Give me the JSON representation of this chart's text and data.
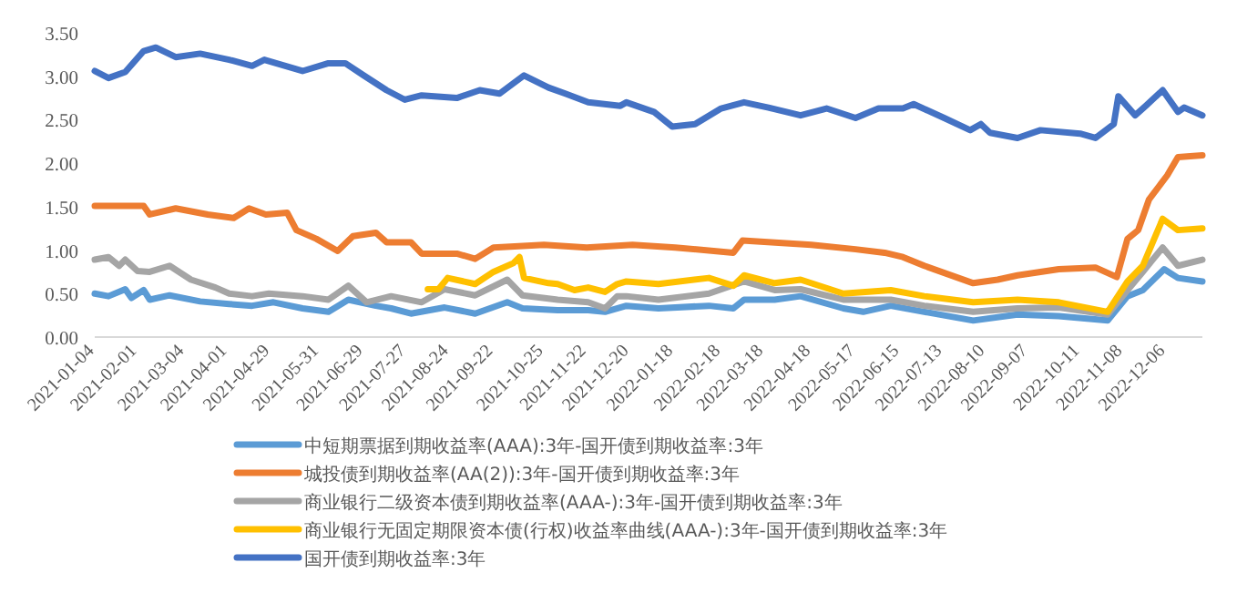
{
  "chart_data": {
    "type": "line",
    "xlim": [
      "2021-01-04",
      "2022-12-30"
    ],
    "ylim": [
      0,
      3.5
    ],
    "yticks": [
      {
        "value": 0,
        "label": "0.00"
      },
      {
        "value": 0.5,
        "label": "0.50"
      },
      {
        "value": 1,
        "label": "1.00"
      },
      {
        "value": 1.5,
        "label": "1.50"
      },
      {
        "value": 2,
        "label": "2.00"
      },
      {
        "value": 2.5,
        "label": "2.50"
      },
      {
        "value": 3,
        "label": "3.00"
      },
      {
        "value": 3.5,
        "label": "3.50"
      }
    ],
    "xticks": [
      {
        "value": "2021-01-04",
        "label": "2021-01-04"
      },
      {
        "value": "2021-02-01",
        "label": "2021-02-01"
      },
      {
        "value": "2021-03-04",
        "label": "2021-03-04"
      },
      {
        "value": "2021-04-01",
        "label": "2021-04-01"
      },
      {
        "value": "2021-04-29",
        "label": "2021-04-29"
      },
      {
        "value": "2021-05-31",
        "label": "2021-05-31"
      },
      {
        "value": "2021-06-29",
        "label": "2021-06-29"
      },
      {
        "value": "2021-07-27",
        "label": "2021-07-27"
      },
      {
        "value": "2021-08-24",
        "label": "2021-08-24"
      },
      {
        "value": "2021-09-22",
        "label": "2021-09-22"
      },
      {
        "value": "2021-10-25",
        "label": "2021-10-25"
      },
      {
        "value": "2021-11-22",
        "label": "2021-11-22"
      },
      {
        "value": "2021-12-20",
        "label": "2021-12-20"
      },
      {
        "value": "2022-01-18",
        "label": "2022-01-18"
      },
      {
        "value": "2022-02-18",
        "label": "2022-02-18"
      },
      {
        "value": "2022-03-18",
        "label": "2022-03-18"
      },
      {
        "value": "2022-04-18",
        "label": "2022-04-18"
      },
      {
        "value": "2022-05-17",
        "label": "2022-05-17"
      },
      {
        "value": "2022-06-15",
        "label": "2022-06-15"
      },
      {
        "value": "2022-07-13",
        "label": "2022-07-13"
      },
      {
        "value": "2022-08-10",
        "label": "2022-08-10"
      },
      {
        "value": "2022-09-07",
        "label": "2022-09-07"
      },
      {
        "value": "2022-10-11",
        "label": "2022-10-11"
      },
      {
        "value": "2022-11-08",
        "label": "2022-11-08"
      },
      {
        "value": "2022-12-06",
        "label": "2022-12-06"
      }
    ],
    "grid": false,
    "legend": "bottom",
    "marker": "none",
    "line_style": "solid",
    "series": [
      {
        "name": "中短期票据到期收益率(AAA):3年-国开债到期收益率:3年",
        "color": "#5b9bd5",
        "x": [
          "2021-01-04",
          "2021-01-13",
          "2021-01-24",
          "2021-01-28",
          "2021-02-05",
          "2021-02-09",
          "2021-02-22",
          "2021-03-14",
          "2021-04-02",
          "2021-04-17",
          "2021-05-01",
          "2021-05-20",
          "2021-06-06",
          "2021-06-19",
          "2021-07-07",
          "2021-07-17",
          "2021-07-30",
          "2021-08-21",
          "2021-09-10",
          "2021-10-01",
          "2021-10-11",
          "2021-11-03",
          "2021-11-23",
          "2021-12-04",
          "2021-12-18",
          "2022-01-08",
          "2022-02-10",
          "2022-02-26",
          "2022-03-05",
          "2022-03-25",
          "2022-04-11",
          "2022-05-09",
          "2022-05-22",
          "2022-06-09",
          "2022-07-01",
          "2022-08-02",
          "2022-08-31",
          "2022-09-27",
          "2022-10-29",
          "2022-11-11",
          "2022-11-21",
          "2022-12-05",
          "2022-12-14",
          "2022-12-30"
        ],
        "values": [
          0.5,
          0.47,
          0.55,
          0.45,
          0.54,
          0.43,
          0.48,
          0.41,
          0.38,
          0.36,
          0.4,
          0.33,
          0.29,
          0.43,
          0.36,
          0.33,
          0.27,
          0.34,
          0.27,
          0.4,
          0.33,
          0.31,
          0.31,
          0.29,
          0.36,
          0.33,
          0.36,
          0.33,
          0.43,
          0.43,
          0.47,
          0.33,
          0.29,
          0.36,
          0.29,
          0.19,
          0.26,
          0.24,
          0.19,
          0.47,
          0.54,
          0.78,
          0.68,
          0.64
        ]
      },
      {
        "name": "城投债到期收益率(AA(2)):3年-国开债到期收益率:3年",
        "color": "#ed7d31",
        "x": [
          "2021-01-04",
          "2021-02-05",
          "2021-02-09",
          "2021-02-26",
          "2021-03-19",
          "2021-04-05",
          "2021-04-15",
          "2021-04-26",
          "2021-05-10",
          "2021-05-16",
          "2021-05-29",
          "2021-06-12",
          "2021-06-22",
          "2021-07-07",
          "2021-07-14",
          "2021-07-30",
          "2021-08-06",
          "2021-08-29",
          "2021-09-10",
          "2021-09-22",
          "2021-10-25",
          "2021-11-22",
          "2021-12-22",
          "2022-01-19",
          "2022-02-26",
          "2022-03-04",
          "2022-04-18",
          "2022-05-17",
          "2022-06-05",
          "2022-06-17",
          "2022-07-01",
          "2022-08-02",
          "2022-08-18",
          "2022-08-31",
          "2022-09-27",
          "2022-10-21",
          "2022-11-04",
          "2022-11-11",
          "2022-11-18",
          "2022-11-25",
          "2022-12-07",
          "2022-12-14",
          "2022-12-30"
        ],
        "values": [
          1.51,
          1.51,
          1.41,
          1.48,
          1.41,
          1.37,
          1.48,
          1.41,
          1.43,
          1.23,
          1.13,
          0.99,
          1.16,
          1.2,
          1.09,
          1.09,
          0.96,
          0.96,
          0.9,
          1.03,
          1.06,
          1.03,
          1.06,
          1.03,
          0.97,
          1.11,
          1.06,
          1.01,
          0.97,
          0.92,
          0.82,
          0.62,
          0.66,
          0.71,
          0.78,
          0.8,
          0.69,
          1.13,
          1.23,
          1.58,
          1.86,
          2.07,
          2.09
        ]
      },
      {
        "name": "商业银行二级资本债到期收益率(AAA-):3年-国开债到期收益率:3年",
        "color": "#a5a5a5",
        "x": [
          "2021-01-04",
          "2021-01-13",
          "2021-01-20",
          "2021-01-24",
          "2021-02-01",
          "2021-02-09",
          "2021-02-22",
          "2021-03-08",
          "2021-03-24",
          "2021-04-02",
          "2021-04-17",
          "2021-04-28",
          "2021-05-20",
          "2021-06-06",
          "2021-06-19",
          "2021-07-01",
          "2021-07-17",
          "2021-08-06",
          "2021-08-21",
          "2021-09-10",
          "2021-10-01",
          "2021-10-11",
          "2021-11-03",
          "2021-11-23",
          "2021-12-04",
          "2021-12-12",
          "2021-12-18",
          "2022-01-08",
          "2022-02-10",
          "2022-03-05",
          "2022-03-25",
          "2022-04-11",
          "2022-05-09",
          "2022-06-09",
          "2022-07-01",
          "2022-08-02",
          "2022-08-31",
          "2022-09-27",
          "2022-10-29",
          "2022-11-11",
          "2022-11-21",
          "2022-12-04",
          "2022-12-14",
          "2022-12-30"
        ],
        "values": [
          0.89,
          0.92,
          0.82,
          0.89,
          0.76,
          0.75,
          0.82,
          0.66,
          0.57,
          0.5,
          0.47,
          0.5,
          0.47,
          0.43,
          0.59,
          0.4,
          0.47,
          0.4,
          0.55,
          0.48,
          0.66,
          0.48,
          0.43,
          0.4,
          0.33,
          0.47,
          0.47,
          0.43,
          0.5,
          0.64,
          0.54,
          0.55,
          0.43,
          0.43,
          0.36,
          0.29,
          0.33,
          0.34,
          0.26,
          0.54,
          0.75,
          1.03,
          0.82,
          0.89
        ]
      },
      {
        "name": "商业银行无固定期限资本债(行权)收益率曲线(AAA-):3年-国开债到期收益率:3年",
        "color": "#ffc000",
        "x": [
          "2021-08-10",
          "2021-08-17",
          "2021-08-23",
          "2021-09-10",
          "2021-09-22",
          "2021-10-05",
          "2021-10-09",
          "2021-10-12",
          "2021-10-28",
          "2021-11-03",
          "2021-11-14",
          "2021-11-23",
          "2021-12-04",
          "2021-12-12",
          "2021-12-18",
          "2022-01-08",
          "2022-02-10",
          "2022-02-26",
          "2022-03-05",
          "2022-03-25",
          "2022-04-11",
          "2022-05-09",
          "2022-06-09",
          "2022-07-01",
          "2022-08-02",
          "2022-08-31",
          "2022-09-27",
          "2022-10-29",
          "2022-11-11",
          "2022-11-21",
          "2022-12-04",
          "2022-12-14",
          "2022-12-30"
        ],
        "values": [
          0.55,
          0.55,
          0.68,
          0.61,
          0.75,
          0.85,
          0.92,
          0.68,
          0.62,
          0.61,
          0.54,
          0.57,
          0.52,
          0.61,
          0.64,
          0.61,
          0.68,
          0.59,
          0.71,
          0.62,
          0.66,
          0.5,
          0.54,
          0.47,
          0.4,
          0.43,
          0.4,
          0.29,
          0.64,
          0.82,
          1.36,
          1.23,
          1.25
        ]
      },
      {
        "name": "国开债到期收益率:3年",
        "color": "#4472c4",
        "x": [
          "2021-01-04",
          "2021-01-13",
          "2021-01-24",
          "2021-02-05",
          "2021-02-13",
          "2021-02-26",
          "2021-03-14",
          "2021-04-02",
          "2021-04-17",
          "2021-04-25",
          "2021-05-20",
          "2021-06-06",
          "2021-06-17",
          "2021-06-29",
          "2021-07-14",
          "2021-07-26",
          "2021-08-06",
          "2021-08-29",
          "2021-09-13",
          "2021-09-26",
          "2021-10-12",
          "2021-10-28",
          "2021-11-08",
          "2021-11-23",
          "2021-12-14",
          "2021-12-18",
          "2022-01-05",
          "2022-01-17",
          "2022-02-01",
          "2022-02-18",
          "2022-03-05",
          "2022-03-21",
          "2022-04-11",
          "2022-04-28",
          "2022-05-17",
          "2022-06-01",
          "2022-06-17",
          "2022-06-24",
          "2022-07-14",
          "2022-07-31",
          "2022-08-07",
          "2022-08-13",
          "2022-08-31",
          "2022-09-15",
          "2022-10-11",
          "2022-10-21",
          "2022-11-02",
          "2022-11-05",
          "2022-11-16",
          "2022-11-23",
          "2022-12-04",
          "2022-12-14",
          "2022-12-18",
          "2022-12-30"
        ],
        "values": [
          3.06,
          2.98,
          3.05,
          3.29,
          3.33,
          3.22,
          3.26,
          3.19,
          3.12,
          3.19,
          3.06,
          3.15,
          3.15,
          3.01,
          2.84,
          2.73,
          2.78,
          2.75,
          2.84,
          2.8,
          3.01,
          2.87,
          2.8,
          2.7,
          2.66,
          2.7,
          2.59,
          2.42,
          2.45,
          2.63,
          2.7,
          2.64,
          2.55,
          2.63,
          2.52,
          2.63,
          2.63,
          2.68,
          2.52,
          2.38,
          2.45,
          2.35,
          2.29,
          2.38,
          2.34,
          2.29,
          2.45,
          2.77,
          2.55,
          2.66,
          2.84,
          2.59,
          2.64,
          2.55
        ]
      }
    ]
  }
}
